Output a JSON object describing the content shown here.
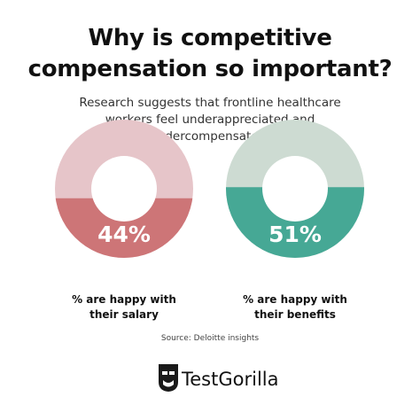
{
  "header": {
    "title": "Why is competitive compensation so important?",
    "subtitle": "Research suggests that frontline healthcare workers feel underappreciated and undercompensated:"
  },
  "chart_data": [
    {
      "type": "donut-fill",
      "categories": [
        "% are happy with their salary"
      ],
      "values": [
        44
      ],
      "value_labels": [
        "44%"
      ],
      "color": "#cd7577",
      "track_color": "#e6c5c9"
    },
    {
      "type": "donut-fill",
      "categories": [
        "% are happy with their benefits"
      ],
      "values": [
        51
      ],
      "value_labels": [
        "51%"
      ],
      "color": "#46a895",
      "track_color": "#cddbd2"
    }
  ],
  "footer": {
    "source": "Source: Deloitte insights",
    "brand": "TestGorilla"
  }
}
